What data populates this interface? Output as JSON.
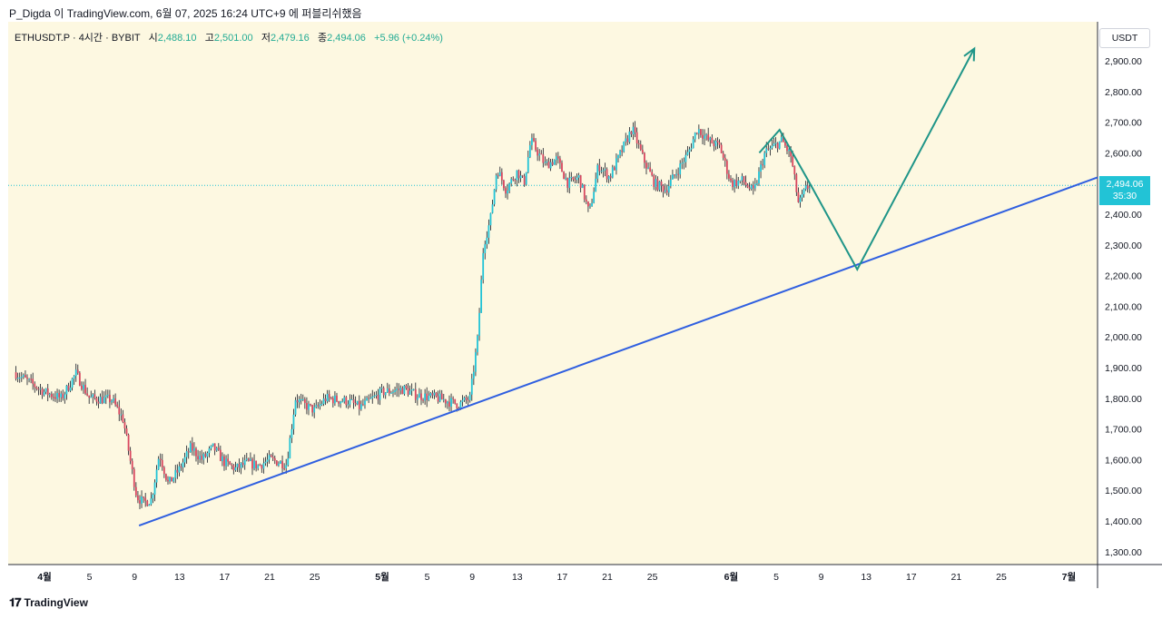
{
  "header": {
    "text": "P_Digda 이 TradingView.com, 6월 07, 2025 16:24 UTC+9 에 퍼블리쉬했음"
  },
  "legend": {
    "symbol": "ETHUSDT.P · 4시간 · BYBIT",
    "open_label": "시",
    "open": "2,488.10",
    "high_label": "고",
    "high": "2,501.00",
    "low_label": "저",
    "low": "2,479.16",
    "close_label": "종",
    "close": "2,494.06",
    "change": "+5.96 (+0.24%)"
  },
  "price_axis": {
    "currency": "USDT",
    "current_price": "2,494.06",
    "countdown": "35:30"
  },
  "footer": {
    "brand": "TradingView",
    "logo_icon": "tradingview-logo-icon"
  },
  "colors": {
    "background": "#fdf8e1",
    "up": "#22c3d6",
    "down": "#d9475f",
    "trendline": "#2f5fe0",
    "projection": "#1f9588",
    "price_line": "#22c3d6"
  },
  "chart_data": {
    "type": "candlestick",
    "symbol": "ETHUSDT.P",
    "timeframe": "4시간",
    "exchange": "BYBIT",
    "y_ticks": [
      2900,
      2800,
      2700,
      2600,
      2500,
      2400,
      2300,
      2200,
      2100,
      2000,
      1900,
      1800,
      1700,
      1600,
      1500,
      1400,
      1300
    ],
    "y_tick_labels": [
      "2,900.00",
      "2,800.00",
      "2,700.00",
      "2,600.00",
      "2,400.00",
      "2,300.00",
      "2,200.00",
      "2,100.00",
      "2,000.00",
      "1,900.00",
      "1,800.00",
      "1,700.00",
      "1,600.00",
      "1,500.00",
      "1,400.00",
      "1,300.00"
    ],
    "x_ticks": [
      {
        "label": "4월",
        "day": 0,
        "bold": true
      },
      {
        "label": "5",
        "day": 4
      },
      {
        "label": "9",
        "day": 8
      },
      {
        "label": "13",
        "day": 12
      },
      {
        "label": "17",
        "day": 16
      },
      {
        "label": "21",
        "day": 20
      },
      {
        "label": "25",
        "day": 24
      },
      {
        "label": "5월",
        "day": 30,
        "bold": true
      },
      {
        "label": "5",
        "day": 34
      },
      {
        "label": "9",
        "day": 38
      },
      {
        "label": "13",
        "day": 42
      },
      {
        "label": "17",
        "day": 46
      },
      {
        "label": "21",
        "day": 50
      },
      {
        "label": "25",
        "day": 54
      },
      {
        "label": "6월",
        "day": 61,
        "bold": true
      },
      {
        "label": "5",
        "day": 65
      },
      {
        "label": "9",
        "day": 69
      },
      {
        "label": "13",
        "day": 73
      },
      {
        "label": "17",
        "day": 77
      },
      {
        "label": "21",
        "day": 81
      },
      {
        "label": "25",
        "day": 85
      },
      {
        "label": "7월",
        "day": 91,
        "bold": true
      }
    ],
    "price_anchors": [
      {
        "day": -2.7,
        "price": 1885
      },
      {
        "day": 0,
        "price": 1820
      },
      {
        "day": 1.5,
        "price": 1800
      },
      {
        "day": 2.8,
        "price": 1880
      },
      {
        "day": 4,
        "price": 1800
      },
      {
        "day": 6,
        "price": 1795
      },
      {
        "day": 7,
        "price": 1730
      },
      {
        "day": 7.8,
        "price": 1560
      },
      {
        "day": 8.2,
        "price": 1480
      },
      {
        "day": 8.8,
        "price": 1460
      },
      {
        "day": 9.5,
        "price": 1470
      },
      {
        "day": 10.2,
        "price": 1620
      },
      {
        "day": 11,
        "price": 1520
      },
      {
        "day": 12,
        "price": 1570
      },
      {
        "day": 13,
        "price": 1640
      },
      {
        "day": 14,
        "price": 1600
      },
      {
        "day": 15,
        "price": 1640
      },
      {
        "day": 16,
        "price": 1590
      },
      {
        "day": 17,
        "price": 1570
      },
      {
        "day": 18,
        "price": 1590
      },
      {
        "day": 19,
        "price": 1580
      },
      {
        "day": 20,
        "price": 1600
      },
      {
        "day": 21.5,
        "price": 1585
      },
      {
        "day": 22.3,
        "price": 1800
      },
      {
        "day": 23,
        "price": 1780
      },
      {
        "day": 24,
        "price": 1760
      },
      {
        "day": 25,
        "price": 1800
      },
      {
        "day": 27,
        "price": 1790
      },
      {
        "day": 28,
        "price": 1770
      },
      {
        "day": 30,
        "price": 1820
      },
      {
        "day": 32,
        "price": 1830
      },
      {
        "day": 33,
        "price": 1810
      },
      {
        "day": 35,
        "price": 1800
      },
      {
        "day": 36.8,
        "price": 1780
      },
      {
        "day": 37.8,
        "price": 1800
      },
      {
        "day": 38.5,
        "price": 2000
      },
      {
        "day": 39,
        "price": 2300
      },
      {
        "day": 39.6,
        "price": 2380
      },
      {
        "day": 40.2,
        "price": 2550
      },
      {
        "day": 41,
        "price": 2480
      },
      {
        "day": 42,
        "price": 2540
      },
      {
        "day": 42.6,
        "price": 2500
      },
      {
        "day": 43.2,
        "price": 2640
      },
      {
        "day": 44.5,
        "price": 2560
      },
      {
        "day": 45.5,
        "price": 2580
      },
      {
        "day": 46.5,
        "price": 2500
      },
      {
        "day": 47.5,
        "price": 2520
      },
      {
        "day": 48.4,
        "price": 2400
      },
      {
        "day": 49.2,
        "price": 2560
      },
      {
        "day": 50.2,
        "price": 2520
      },
      {
        "day": 51.2,
        "price": 2600
      },
      {
        "day": 52.2,
        "price": 2680
      },
      {
        "day": 53.2,
        "price": 2580
      },
      {
        "day": 54.2,
        "price": 2500
      },
      {
        "day": 55.2,
        "price": 2480
      },
      {
        "day": 56.2,
        "price": 2540
      },
      {
        "day": 57.2,
        "price": 2600
      },
      {
        "day": 58,
        "price": 2680
      },
      {
        "day": 59,
        "price": 2640
      },
      {
        "day": 60,
        "price": 2620
      },
      {
        "day": 61,
        "price": 2500
      },
      {
        "day": 62,
        "price": 2510
      },
      {
        "day": 63,
        "price": 2470
      },
      {
        "day": 64,
        "price": 2600
      },
      {
        "day": 65.5,
        "price": 2640
      },
      {
        "day": 66.3,
        "price": 2590
      },
      {
        "day": 67,
        "price": 2430
      },
      {
        "day": 67.6,
        "price": 2480
      },
      {
        "day": 68,
        "price": 2494
      }
    ],
    "last_price": 2494.06,
    "trendline": [
      {
        "day": 8.4,
        "price": 1385
      },
      {
        "day": 96,
        "price": 2520
      }
    ],
    "projection_path": [
      {
        "day": 63.5,
        "price": 2600
      },
      {
        "day": 65.3,
        "price": 2675
      },
      {
        "day": 68,
        "price": 2500
      },
      {
        "day": 72.2,
        "price": 2220
      },
      {
        "day": 82.6,
        "price": 2940
      }
    ]
  }
}
